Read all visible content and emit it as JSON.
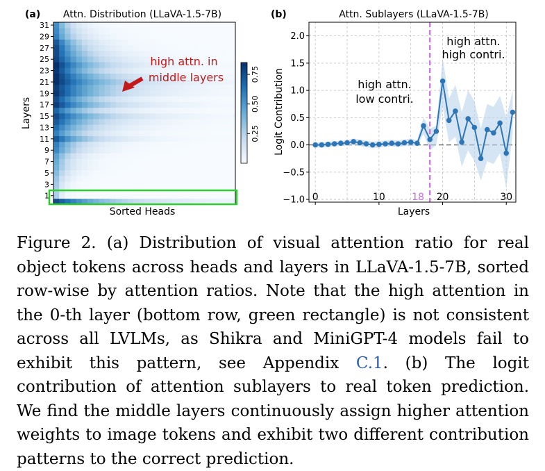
{
  "chart_data": [
    {
      "type": "heatmap",
      "panel_label": "(a)",
      "title": "Attn. Distribution (LLaVA-1.5-7B)",
      "xlabel": "Sorted Heads",
      "ylabel": "Layers",
      "n_layers": 32,
      "n_heads": 32,
      "ytick_labels": [
        "1",
        "3",
        "5",
        "7",
        "9",
        "11",
        "13",
        "15",
        "17",
        "19",
        "21",
        "23",
        "25",
        "27",
        "29",
        "31"
      ],
      "colorbar_ticks": [
        "0.25",
        "0.50",
        "0.75"
      ],
      "colorbar_range": [
        0,
        0.85
      ],
      "annotation": [
        "high attn. in",
        "middle layers"
      ],
      "highlight": "bottom row (layer 0)",
      "layer_peak_intensity": [
        0.85,
        0.3,
        0.3,
        0.32,
        0.35,
        0.4,
        0.45,
        0.48,
        0.52,
        0.62,
        0.65,
        0.8,
        0.65,
        0.72,
        0.8,
        0.85,
        0.75,
        0.9,
        0.85,
        0.92,
        0.9,
        0.95,
        0.95,
        0.92,
        0.95,
        0.88,
        0.85,
        0.85,
        0.8,
        0.65,
        0.62,
        0.6
      ],
      "layer_tail_length": [
        24,
        2,
        3,
        3,
        4,
        5,
        6,
        6,
        7,
        9,
        10,
        14,
        12,
        14,
        16,
        19,
        14,
        18,
        15,
        19,
        20,
        22,
        18,
        14,
        16,
        14,
        12,
        10,
        9,
        8,
        7,
        6
      ]
    },
    {
      "type": "line",
      "panel_label": "(b)",
      "title": "Attn. Sublayers (LLaVA-1.5-7B)",
      "xlabel": "Layers",
      "ylabel": "Logit Contribution",
      "xlim": [
        -1,
        31.5
      ],
      "ylim": [
        -1.05,
        2.25
      ],
      "xticks": [
        "0",
        "10",
        "20",
        "30"
      ],
      "yticks": [
        "−1.0",
        "−0.5",
        "0.0",
        "0.5",
        "1.0",
        "1.5",
        "2.0"
      ],
      "x": [
        0,
        1,
        2,
        3,
        4,
        5,
        6,
        7,
        8,
        9,
        10,
        11,
        12,
        13,
        14,
        15,
        16,
        17,
        18,
        19,
        20,
        21,
        22,
        23,
        24,
        25,
        26,
        27,
        28,
        29,
        30,
        31
      ],
      "values": [
        0.0,
        0.0,
        0.01,
        0.02,
        0.03,
        0.04,
        0.06,
        0.04,
        0.02,
        0.0,
        0.01,
        0.02,
        0.03,
        0.02,
        0.04,
        0.05,
        0.03,
        0.35,
        0.1,
        0.25,
        1.17,
        0.45,
        0.62,
        0.05,
        0.48,
        0.32,
        -0.25,
        0.28,
        0.22,
        0.4,
        -0.15,
        0.6
      ],
      "band_upper": [
        0.05,
        0.05,
        0.06,
        0.07,
        0.08,
        0.09,
        0.12,
        0.1,
        0.08,
        0.06,
        0.07,
        0.08,
        0.09,
        0.08,
        0.1,
        0.12,
        0.08,
        0.5,
        0.3,
        0.35,
        1.6,
        0.85,
        1.1,
        0.6,
        1.0,
        0.8,
        0.3,
        0.75,
        0.7,
        0.9,
        0.5,
        1.0
      ],
      "band_lower": [
        -0.05,
        -0.05,
        -0.04,
        -0.03,
        -0.02,
        -0.01,
        0.0,
        -0.02,
        -0.04,
        -0.06,
        -0.05,
        -0.04,
        -0.03,
        -0.04,
        -0.02,
        -0.02,
        -0.02,
        0.2,
        -0.1,
        0.0,
        0.7,
        0.05,
        0.15,
        -0.4,
        -0.1,
        -0.3,
        -0.65,
        -0.3,
        -0.35,
        -0.15,
        -0.8,
        0.2
      ],
      "vline_x": 18,
      "vline_label": "18",
      "annotations": [
        [
          "high attn.",
          "low contri."
        ],
        [
          "high attn.",
          "high contri."
        ]
      ],
      "colors": {
        "line": "#2e75b6",
        "band": "#b9d4ec",
        "vline": "#c46fd8",
        "zero": "#555555"
      }
    }
  ],
  "caption": {
    "part1": "Figure 2.  (a) Distribution of visual attention ratio for real object tokens across heads and layers in LLaVA-1.5-7B, sorted row-wise by attention ratios.  Note that the high attention in the 0-th layer (bottom row, green rectangle) is not consistent across all LVLMs, as Shikra and MiniGPT-4 models fail to exhibit this pattern, see Appendix ",
    "ref": "C.1",
    "part2": ".  (b) The logit contribution of attention sublayers to real token prediction. We find the middle layers continuously assign higher attention weights to image tokens and exhibit two different contribution patterns to the correct prediction."
  }
}
